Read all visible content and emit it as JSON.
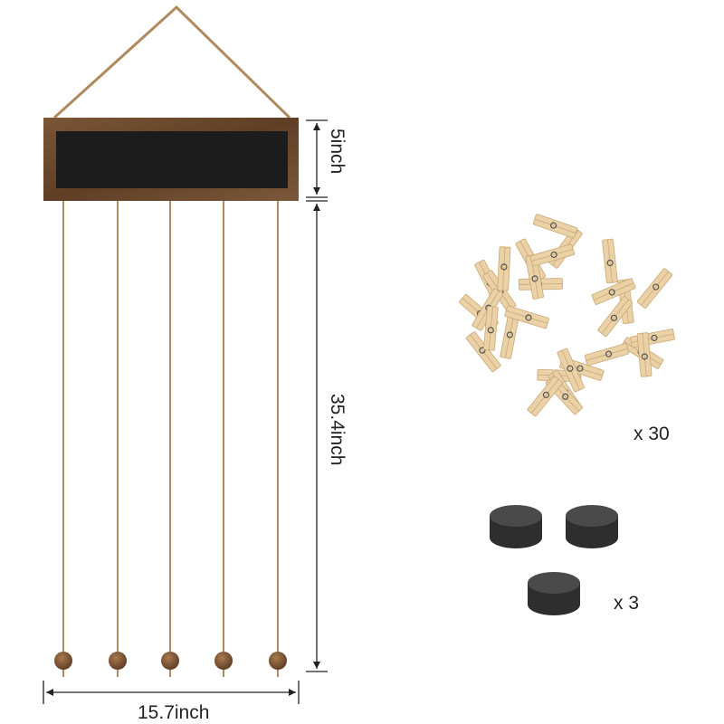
{
  "dimensions": {
    "height_board": "5inch",
    "height_strings": "35.4inch",
    "width": "15.7inch"
  },
  "accessories": {
    "clips_count": "x 30",
    "magnets_count": "x 3"
  },
  "colors": {
    "frame": "#6b4a2f",
    "chalkboard": "#1c1c1c",
    "twine": "#b08a5e",
    "clip_wood": "#ead2a6",
    "magnet": "#3a3a3a"
  },
  "icons": [
    "clothespin-icon",
    "magnet-icon",
    "bead-icon"
  ]
}
